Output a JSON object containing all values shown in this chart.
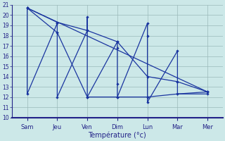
{
  "background_color": "#cce8e8",
  "grid_color": "#9ababa",
  "line_color": "#1a35a0",
  "xlabel": "Température (°c)",
  "ylim": [
    10,
    21
  ],
  "yticks": [
    10,
    11,
    12,
    13,
    14,
    15,
    16,
    17,
    18,
    19,
    20,
    21
  ],
  "day_labels": [
    "Sam",
    "Jeu",
    "Ven",
    "Dim",
    "Lun",
    "Mar",
    "Mer"
  ],
  "day_x": [
    0,
    2,
    4,
    6,
    8,
    10,
    12
  ],
  "zigzag": {
    "x": [
      0,
      0,
      2,
      2,
      2,
      4,
      4,
      4,
      6,
      6,
      6,
      6,
      8,
      8,
      8,
      10,
      10,
      10,
      12,
      12
    ],
    "y": [
      20.7,
      12.3,
      19.2,
      18.3,
      12.0,
      18.5,
      19.8,
      12.0,
      17.4,
      16.8,
      13.3,
      12.0,
      19.2,
      18.0,
      11.5,
      16.5,
      13.5,
      12.3,
      12.3,
      12.5
    ]
  },
  "upper_trend": {
    "x": [
      0,
      2,
      4,
      6,
      8,
      10,
      12
    ],
    "y": [
      20.7,
      19.3,
      18.5,
      17.4,
      14.0,
      13.5,
      12.5
    ]
  },
  "lower_trend": {
    "x": [
      0,
      2,
      4,
      6,
      8,
      10,
      12
    ],
    "y": [
      20.7,
      18.3,
      12.0,
      12.0,
      12.0,
      12.3,
      12.5
    ]
  },
  "diagonal": {
    "x": [
      0,
      12
    ],
    "y": [
      20.7,
      12.5
    ]
  }
}
